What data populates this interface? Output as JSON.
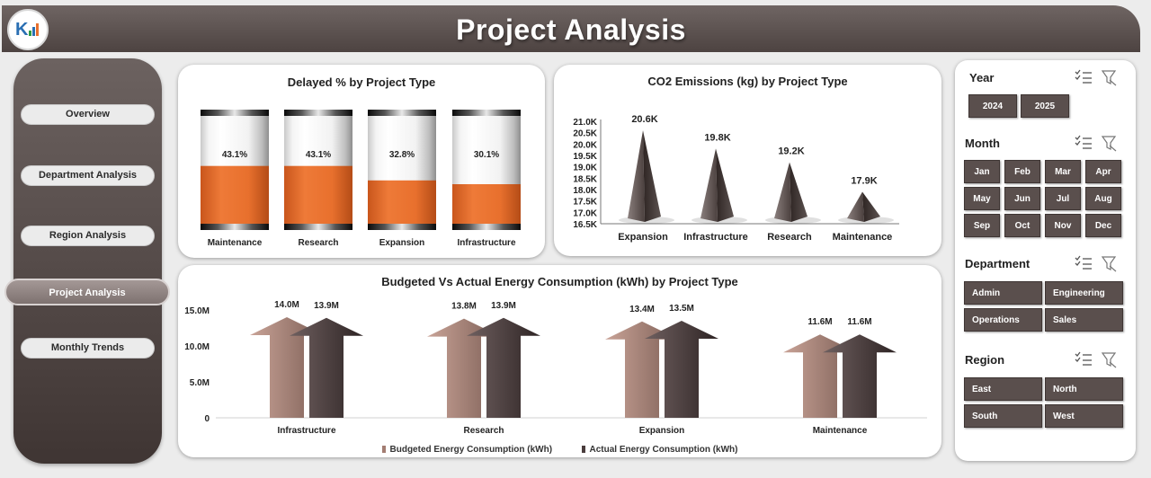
{
  "header": {
    "title": "Project Analysis"
  },
  "nav": {
    "items": [
      "Overview",
      "Department Analysis",
      "Region Analysis",
      "Project Analysis",
      "Monthly Trends"
    ],
    "active": "Project Analysis"
  },
  "colors": {
    "accent": "#e8702d",
    "dark": "#4d4341",
    "budget": "#a37d72",
    "actual": "#4a3d3d"
  },
  "charts": {
    "delayed": {
      "title": "Delayed % by Project Type",
      "labels": [
        "43.1%",
        "43.1%",
        "32.8%",
        "30.1%"
      ]
    },
    "co2": {
      "title": "CO2 Emissions (kg) by Project Type",
      "labels": [
        "20.6K",
        "19.8K",
        "19.2K",
        "17.9K"
      ],
      "ticks": [
        "21.0K",
        "20.5K",
        "20.0K",
        "19.5K",
        "19.0K",
        "18.5K",
        "18.0K",
        "17.5K",
        "17.0K",
        "16.5K"
      ]
    },
    "energy": {
      "title": "Budgeted Vs Actual Energy Consumption (kWh) by Project Type",
      "budget_labels": [
        "14.0M",
        "13.8M",
        "13.4M",
        "11.6M"
      ],
      "actual_labels": [
        "13.9M",
        "13.9M",
        "13.5M",
        "11.6M"
      ],
      "ticks": [
        "15.0M",
        "10.0M",
        "5.0M",
        "0"
      ],
      "legend": [
        "Budgeted Energy Consumption (kWh)",
        "Actual Energy Consumption (kWh)"
      ]
    }
  },
  "chart_data": [
    {
      "type": "bar",
      "title": "Delayed % by Project Type",
      "categories": [
        "Maintenance",
        "Research",
        "Expansion",
        "Infrastructure"
      ],
      "values": [
        43.1,
        43.1,
        32.8,
        30.1
      ],
      "ylim": [
        0,
        100
      ],
      "xlabel": "",
      "ylabel": ""
    },
    {
      "type": "bar",
      "title": "CO2 Emissions (kg) by Project Type",
      "categories": [
        "Expansion",
        "Infrastructure",
        "Research",
        "Maintenance"
      ],
      "values": [
        20600,
        19800,
        19200,
        17900
      ],
      "ylim": [
        16500,
        21000
      ],
      "xlabel": "",
      "ylabel": ""
    },
    {
      "type": "bar",
      "title": "Budgeted Vs Actual Energy Consumption (kWh) by Project Type",
      "categories": [
        "Infrastructure",
        "Research",
        "Expansion",
        "Maintenance"
      ],
      "series": [
        {
          "name": "Budgeted Energy Consumption (kWh)",
          "values": [
            14000000,
            13800000,
            13400000,
            11600000
          ]
        },
        {
          "name": "Actual Energy Consumption (kWh)",
          "values": [
            13900000,
            13900000,
            13500000,
            11600000
          ]
        }
      ],
      "ylim": [
        0,
        15000000
      ],
      "xlabel": "",
      "ylabel": ""
    }
  ],
  "slicers": {
    "year": {
      "title": "Year",
      "items": [
        "2024",
        "2025"
      ]
    },
    "month": {
      "title": "Month",
      "items": [
        "Jan",
        "Feb",
        "Mar",
        "Apr",
        "May",
        "Jun",
        "Jul",
        "Aug",
        "Sep",
        "Oct",
        "Nov",
        "Dec"
      ]
    },
    "department": {
      "title": "Department",
      "items": [
        "Admin",
        "Engineering",
        "Operations",
        "Sales"
      ]
    },
    "region": {
      "title": "Region",
      "items": [
        "East",
        "North",
        "South",
        "West"
      ]
    }
  }
}
